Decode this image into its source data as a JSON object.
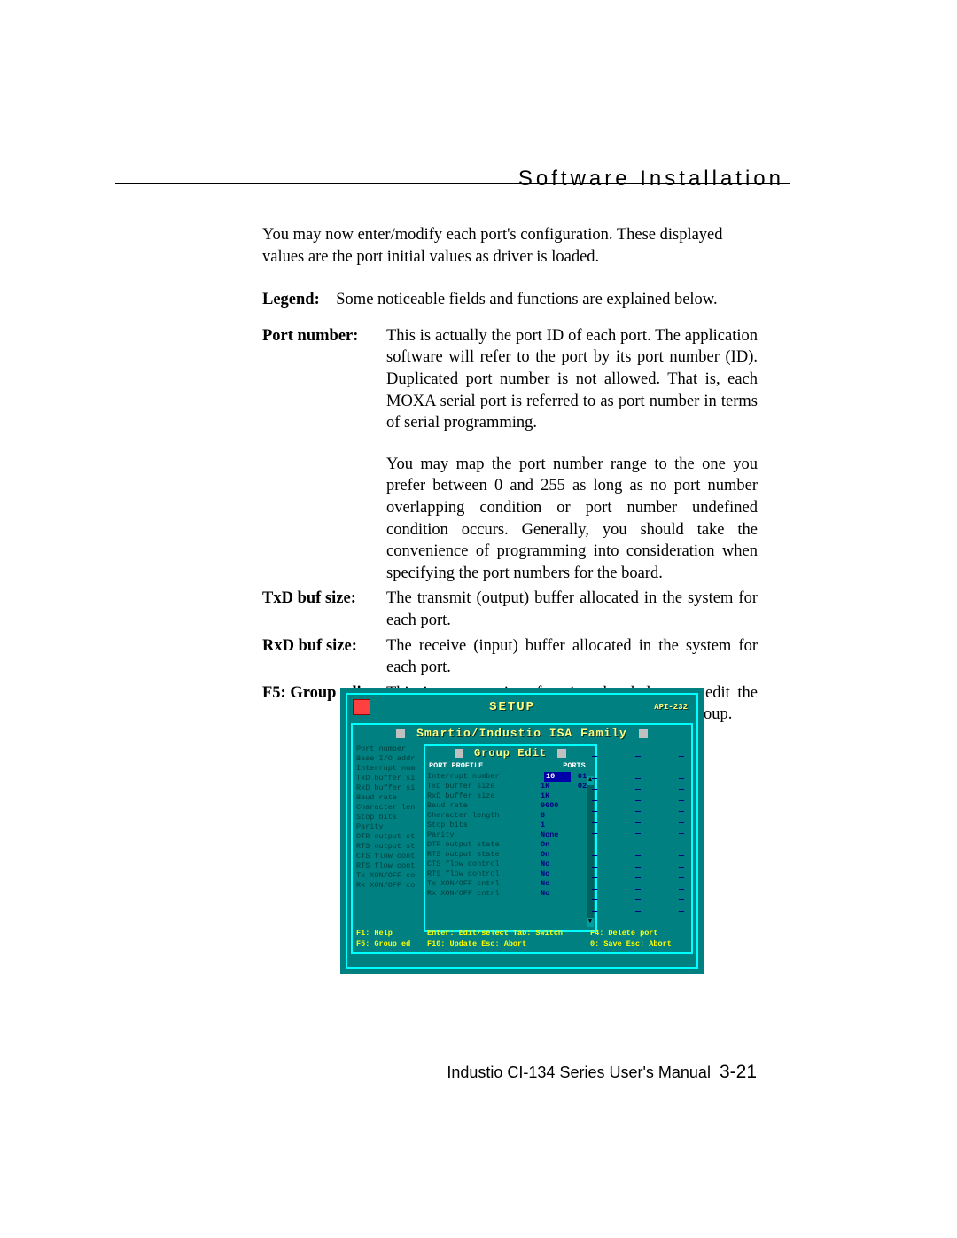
{
  "page": {
    "section_title": "Software Installation",
    "footer_text": "Industio CI-134 Series User's Manual",
    "footer_page": "3-21"
  },
  "body": {
    "intro": "You may now enter/modify each port's configuration. These displayed values are the port initial values as driver is loaded.",
    "legend_label": "Legend",
    "legend_text": "Some noticeable fields and functions are explained below.",
    "defs": [
      {
        "label": "Port number:",
        "text": "This is actually the port ID of each port. The application software will refer to the port by its port number (ID). Duplicated port number is not allowed. That is, each MOXA serial port is referred to as port number in terms of serial programming."
      },
      {
        "label": "",
        "text": "You may map the port number range to the one you prefer between 0 and 255 as long as no port number overlapping condition or port number undefined condition occurs. Generally, you should take the convenience of programming into consideration when specifying the port numbers for the board."
      },
      {
        "label": "TxD buf size:",
        "text": "The transmit (output) buffer allocated in the system for each port."
      },
      {
        "label": "RxD buf size:",
        "text": "The receive (input) buffer allocated in the system for each port."
      },
      {
        "label": "F5: Group edit:",
        "text": "This is a convenient function that helps you edit the configuration of several ports at one time as a group."
      }
    ]
  },
  "screenshot": {
    "colors": {
      "bg": "#008080",
      "border": "#00ffff",
      "title": "#ffff80",
      "label_dim": "#004040",
      "value": "#000080",
      "highlight_bg": "#0000a8",
      "highlight_fg": "#ffffff",
      "hint": "#ffff00"
    },
    "header": {
      "title": "SETUP",
      "right": "API-232"
    },
    "panel_title": "Smartio/Industio ISA Family",
    "left_items": [
      "Port number",
      "Base I/O addr",
      "Interrupt num",
      "TxD buffer si",
      "RxD buffer si",
      "Baud rate",
      "Character len",
      "Stop bits",
      "Parity",
      "DTR output st",
      "RTS output st",
      "CTS flow cont",
      "RTS flow cont",
      "Tx XON/OFF co",
      "Rx XON/OFF co"
    ],
    "left_hints": {
      "f1": "F1: Help",
      "f5": "F5: Group ed"
    },
    "group": {
      "title": "Group Edit",
      "col_left": "PORT PROFILE",
      "col_right": "PORTS",
      "rows": [
        {
          "lbl": "Interrupt number",
          "val": "10",
          "hl": true,
          "port": "01"
        },
        {
          "lbl": "TxD buffer size",
          "val": "1K",
          "port": "02"
        },
        {
          "lbl": "RxD buffer size",
          "val": "1K"
        },
        {
          "lbl": "Baud rate",
          "val": "9600"
        },
        {
          "lbl": "Character length",
          "val": "8"
        },
        {
          "lbl": "Stop bits",
          "val": "1"
        },
        {
          "lbl": "Parity",
          "val": "None"
        },
        {
          "lbl": "DTR output state",
          "val": "On"
        },
        {
          "lbl": "RTS output state",
          "val": "On"
        },
        {
          "lbl": "CTS flow control",
          "val": "No"
        },
        {
          "lbl": "RTS flow control",
          "val": "No"
        },
        {
          "lbl": "Tx XON/OFF cntrl",
          "val": "No"
        },
        {
          "lbl": "Rx XON/OFF cntrl",
          "val": "No"
        }
      ],
      "footer1": "Enter: Edit/select   Tab: Switch",
      "footer2": "F10: Update        Esc: Abort"
    },
    "right_hints": {
      "f4": "F4: Delete port",
      "save": "0: Save  Esc: Abort"
    },
    "dash_rows": 15
  }
}
